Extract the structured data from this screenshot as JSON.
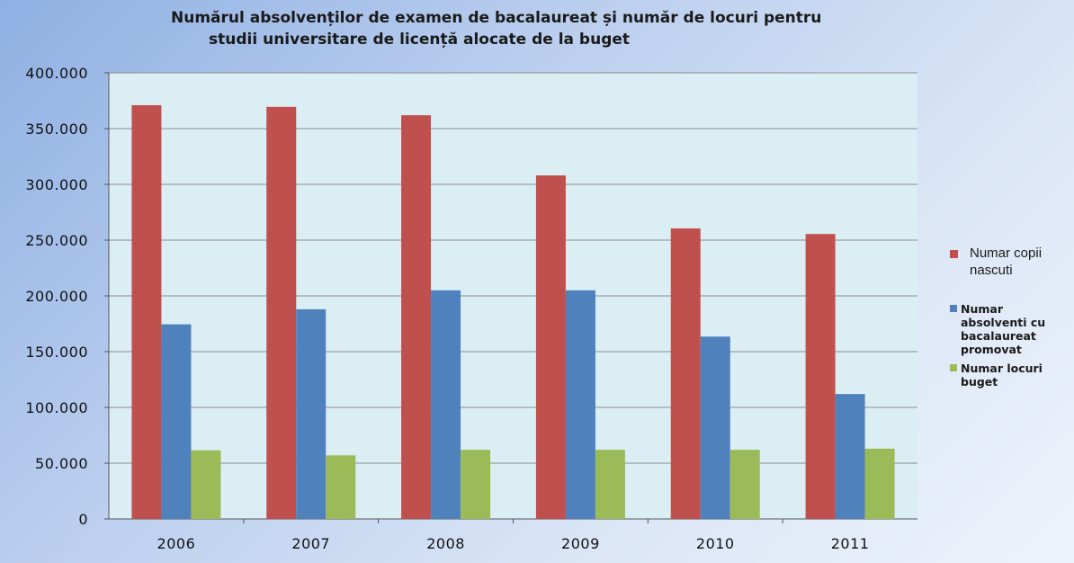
{
  "chart_data": {
    "type": "bar",
    "title_line1": "Numărul absolvenților de examen de bacalaureat și număr de locuri pentru",
    "title_line2": "studii universitare de licență alocate de la buget",
    "categories": [
      "2006",
      "2007",
      "2008",
      "2009",
      "2010",
      "2011"
    ],
    "series": [
      {
        "name": "Numar copii nascuti",
        "color": "#c0504d",
        "values": [
          371000,
          369500,
          362000,
          308000,
          260500,
          255500
        ]
      },
      {
        "name": "Numar absolventi cu bacalaureat promovat",
        "color": "#4f81bd",
        "values": [
          174500,
          188000,
          205000,
          205000,
          163500,
          112000
        ]
      },
      {
        "name": "Numar locuri buget",
        "color": "#9bbb59",
        "values": [
          61500,
          57000,
          62000,
          62000,
          62000,
          63000
        ]
      }
    ],
    "y_ticks": [
      "0",
      "50.000",
      "100.000",
      "150.000",
      "200.000",
      "250.000",
      "300.000",
      "350.000",
      "400.000"
    ],
    "ylim": [
      0,
      400000
    ],
    "grid": true,
    "plot_background": "#dbeef4",
    "legend_position": "right"
  }
}
